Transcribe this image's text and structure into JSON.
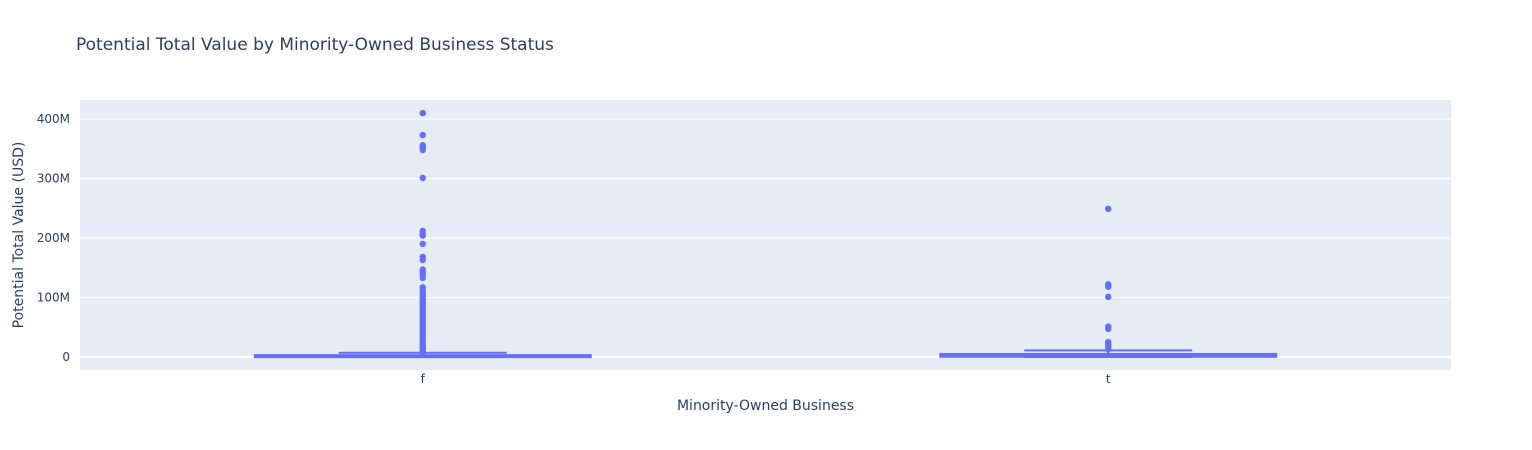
{
  "chart_data": {
    "type": "box",
    "title": "Potential Total Value by Minority-Owned Business Status",
    "xlabel": "Minority-Owned Business",
    "ylabel": "Potential Total Value (USD)",
    "categories": [
      "f",
      "t"
    ],
    "ylim": [
      -22000000,
      432000000
    ],
    "y_ticks": [
      {
        "value": 0,
        "label": "0"
      },
      {
        "value": 100000000,
        "label": "100M"
      },
      {
        "value": 200000000,
        "label": "200M"
      },
      {
        "value": 300000000,
        "label": "300M"
      },
      {
        "value": 400000000,
        "label": "400M"
      }
    ],
    "grid": true,
    "colors": {
      "box": "#636efa",
      "plot_background": "#e5ecf6",
      "grid": "#ffffff",
      "text": "#2a3f5f"
    },
    "boxes": [
      {
        "category": "f",
        "min": 0,
        "q1": 100000,
        "median": 1000000,
        "q3": 3000000,
        "upper_fence": 7000000,
        "outliers": [
          410000000,
          373000000,
          356000000,
          352000000,
          348000000,
          301000000,
          212000000,
          208000000,
          204000000,
          190000000,
          168000000,
          163000000,
          147000000,
          142000000,
          138000000,
          133000000,
          117000000,
          112000000,
          107000000,
          103000000,
          99000000,
          95000000,
          91000000,
          87000000,
          83000000,
          79000000,
          75000000,
          70000000,
          66000000,
          62000000,
          58000000,
          54000000,
          50000000,
          46000000,
          42000000,
          38000000,
          34000000,
          30000000,
          26000000,
          22000000,
          18000000,
          14000000,
          10000000,
          8000000
        ]
      },
      {
        "category": "t",
        "min": 0,
        "q1": 200000,
        "median": 1500000,
        "q3": 5000000,
        "upper_fence": 11000000,
        "outliers": [
          249000000,
          122000000,
          118000000,
          101000000,
          51000000,
          47000000,
          25000000,
          21000000,
          17000000,
          13000000
        ]
      }
    ]
  }
}
